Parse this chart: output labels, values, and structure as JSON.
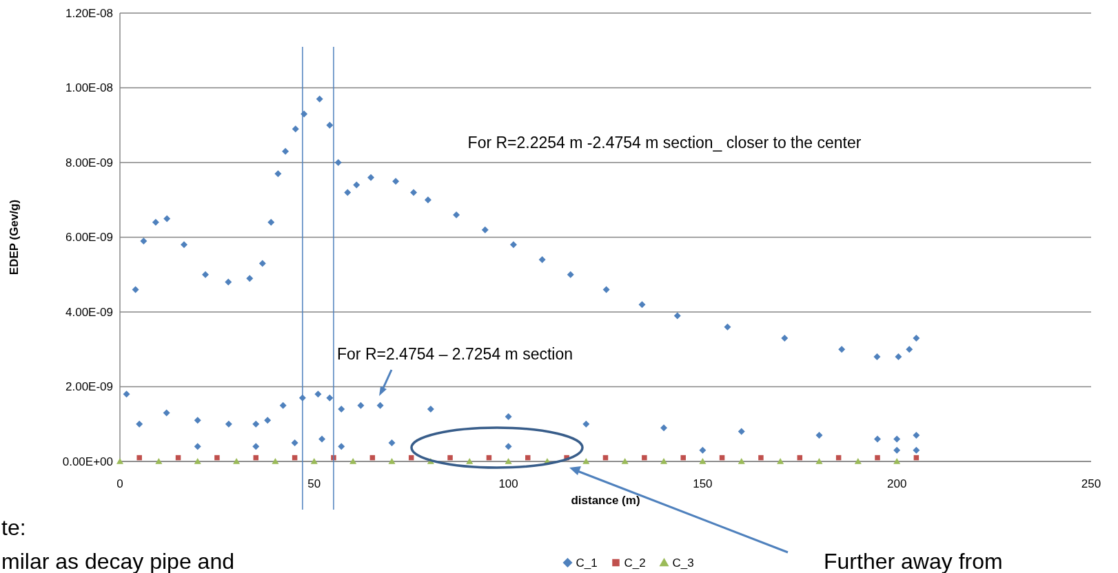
{
  "chart_data": {
    "type": "scatter",
    "xlabel": "distance (m)",
    "ylabel": "EDEP (Gev/g)",
    "xlim": [
      0,
      250
    ],
    "xticks": [
      0,
      50,
      100,
      150,
      200,
      250
    ],
    "ylim": [
      0,
      1.2e-08
    ],
    "yticks": [
      {
        "value": 0,
        "label": "0.00E+00"
      },
      {
        "value": 2e-09,
        "label": "2.00E-09"
      },
      {
        "value": 4e-09,
        "label": "4.00E-09"
      },
      {
        "value": 6e-09,
        "label": "6.00E-09"
      },
      {
        "value": 8e-09,
        "label": "8.00E-09"
      },
      {
        "value": 1e-08,
        "label": "1.00E-08"
      },
      {
        "value": 1.2e-08,
        "label": "1.20E-08"
      }
    ],
    "grid": "y",
    "legend": "bottom",
    "series": [
      {
        "name": "C_1",
        "color": "#4f81bd",
        "marker": "diamond",
        "x": [
          1.7,
          4.0,
          6.1,
          9.2,
          12.1,
          16.5,
          22.0,
          27.9,
          33.4,
          36.7,
          38.9,
          40.7,
          42.6,
          45.2,
          47.4,
          51.4,
          54.0,
          56.2,
          58.6,
          60.9,
          64.6,
          71.0,
          75.6,
          79.3,
          86.6,
          94.0,
          101.3,
          108.7,
          116.0,
          125.2,
          134.4,
          143.5,
          156.4,
          171.1,
          185.8,
          194.9,
          200.4,
          203.2,
          205.0
        ],
        "values": [
          1.8e-09,
          4.6e-09,
          5.9e-09,
          6.4e-09,
          6.5e-09,
          5.8e-09,
          5e-09,
          4.8e-09,
          4.9e-09,
          5.3e-09,
          6.4e-09,
          7.7e-09,
          8.3e-09,
          8.9e-09,
          9.3e-09,
          9.7e-09,
          9e-09,
          8e-09,
          7.2e-09,
          7.4e-09,
          7.6e-09,
          7.5e-09,
          7.2e-09,
          7e-09,
          6.6e-09,
          6.2e-09,
          5.8e-09,
          5.4e-09,
          5e-09,
          4.6e-09,
          4.2e-09,
          3.9e-09,
          3.6e-09,
          3.3e-09,
          3e-09,
          2.8e-09,
          2.8e-09,
          3e-09,
          3.3e-09
        ]
      },
      {
        "color": "#4f81bd",
        "marker": "diamond",
        "x": [
          5,
          12,
          20,
          28,
          35,
          38,
          42,
          47,
          51,
          54,
          57,
          62,
          67,
          80,
          100,
          120,
          140,
          160,
          180,
          195,
          200,
          205
        ],
        "values": [
          1e-09,
          1.3e-09,
          1.1e-09,
          1e-09,
          1e-09,
          1.1e-09,
          1.5e-09,
          1.7e-09,
          1.8e-09,
          1.7e-09,
          1.4e-09,
          1.5e-09,
          1.5e-09,
          1.4e-09,
          1.2e-09,
          1e-09,
          9e-10,
          8e-10,
          7e-10,
          6e-10,
          6e-10,
          7e-10
        ]
      },
      {
        "color": "#4f81bd",
        "marker": "diamond",
        "x": [
          20,
          35,
          45,
          52,
          57,
          70,
          100,
          150,
          200,
          205
        ],
        "values": [
          4e-10,
          4e-10,
          5e-10,
          6e-10,
          4e-10,
          5e-10,
          4e-10,
          3e-10,
          3e-10,
          3e-10
        ]
      },
      {
        "name": "C_2",
        "color": "#c0504d",
        "marker": "square",
        "x": [
          5,
          15,
          25,
          35,
          45,
          55,
          65,
          75,
          85,
          95,
          105,
          115,
          125,
          135,
          145,
          155,
          165,
          175,
          185,
          195,
          205
        ],
        "values": [
          1e-10,
          1e-10,
          1e-10,
          1e-10,
          1e-10,
          1e-10,
          1e-10,
          1e-10,
          1e-10,
          1e-10,
          1e-10,
          1e-10,
          1e-10,
          1e-10,
          1e-10,
          1e-10,
          1e-10,
          1e-10,
          1e-10,
          1e-10,
          1e-10
        ]
      },
      {
        "name": "C_3",
        "color": "#9bbb59",
        "marker": "triangle",
        "x": [
          0,
          10,
          20,
          30,
          40,
          50,
          60,
          70,
          80,
          90,
          100,
          110,
          120,
          130,
          140,
          150,
          160,
          170,
          180,
          190,
          200
        ],
        "values": [
          0,
          0,
          0,
          0,
          0,
          0,
          0,
          0,
          0,
          0,
          0,
          0,
          0,
          0,
          0,
          0,
          0,
          0,
          0,
          0,
          0
        ]
      }
    ],
    "ref_lines": [
      {
        "axis": "x",
        "value": 47,
        "color": "#4f81bd"
      },
      {
        "axis": "x",
        "value": 55,
        "color": "#4f81bd"
      }
    ],
    "annotations": [
      "For R=2.2254 m -2.4754 m section_ closer to the center",
      "For R=2.4754 – 2.7254 m section",
      "Further away from",
      "te:",
      "milar as decay pipe and"
    ]
  }
}
